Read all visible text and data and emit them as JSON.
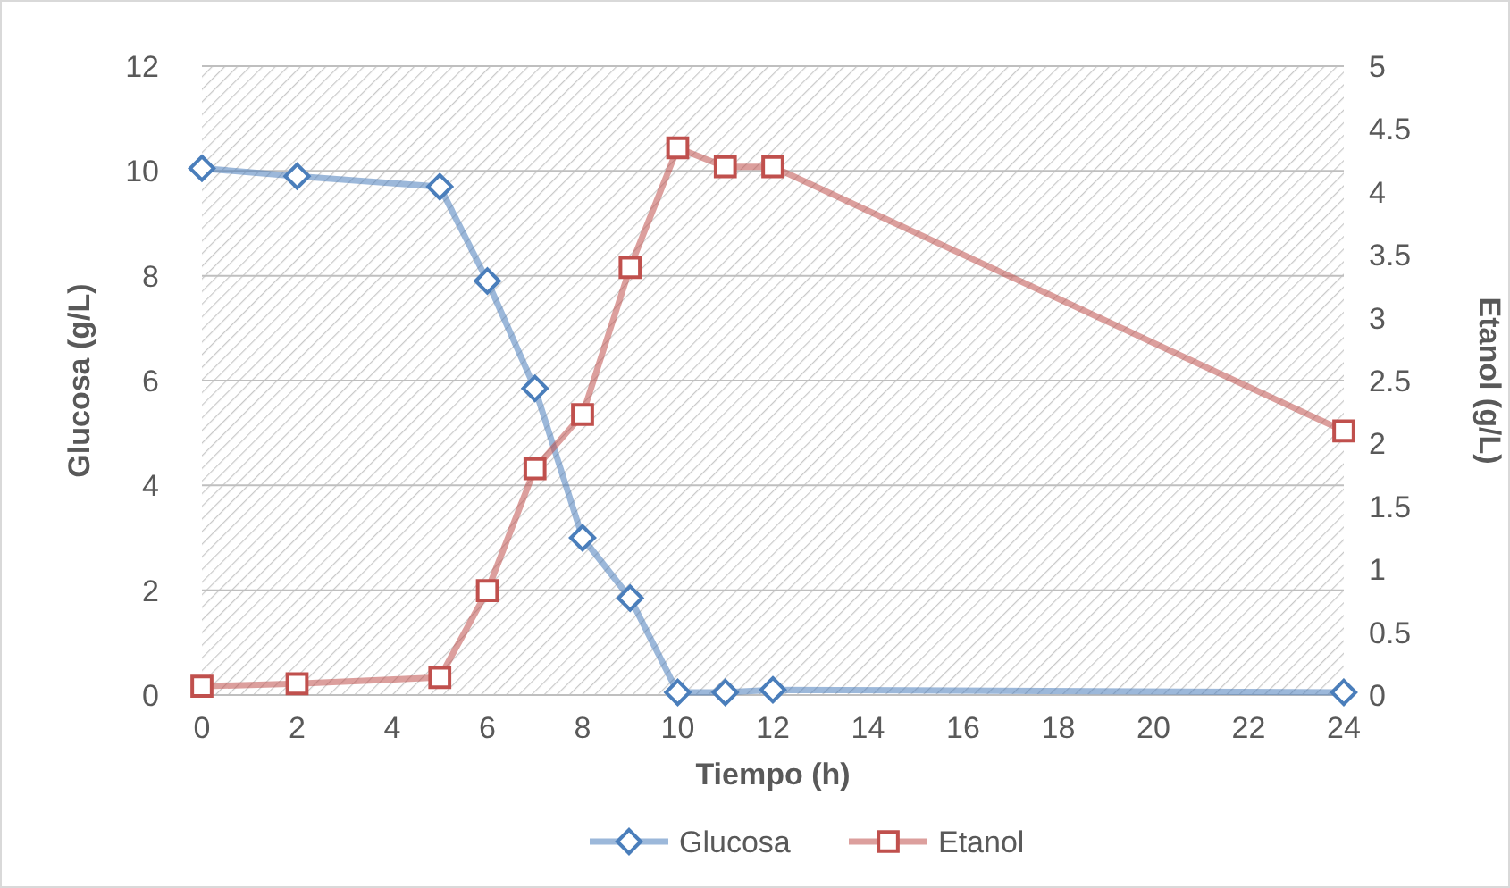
{
  "chart_data": {
    "type": "line",
    "xlabel": "Tiempo (h)",
    "ylabel": "Glucosa (g/L)",
    "y2label": "Etanol (g/L)",
    "x": [
      0,
      2,
      5,
      6,
      7,
      8,
      9,
      10,
      11,
      12,
      24
    ],
    "series": [
      {
        "name": "Glucosa",
        "color": "#4a7ebb",
        "marker": "diamond",
        "values": [
          10.05,
          9.9,
          9.7,
          7.9,
          5.85,
          3.0,
          1.85,
          0.05,
          0.05,
          0.1,
          0.05
        ]
      },
      {
        "name": "Etanol",
        "color": "#c0504d",
        "marker": "square",
        "axis": "y2",
        "values": [
          0.07,
          0.09,
          0.14,
          0.83,
          1.8,
          2.23,
          3.4,
          4.35,
          4.2,
          4.2,
          2.1
        ]
      }
    ],
    "xlim": [
      0,
      24
    ],
    "xticks": [
      0,
      2,
      4,
      6,
      8,
      10,
      12,
      14,
      16,
      18,
      20,
      22,
      24
    ],
    "ylim": [
      0,
      12
    ],
    "yticks": [
      0,
      2,
      4,
      6,
      8,
      10,
      12
    ],
    "y2lim": [
      0,
      5
    ],
    "y2ticks": [
      0,
      0.5,
      1,
      1.5,
      2,
      2.5,
      3,
      3.5,
      4,
      4.5,
      5
    ],
    "grid": "y",
    "legend": "bottom"
  }
}
